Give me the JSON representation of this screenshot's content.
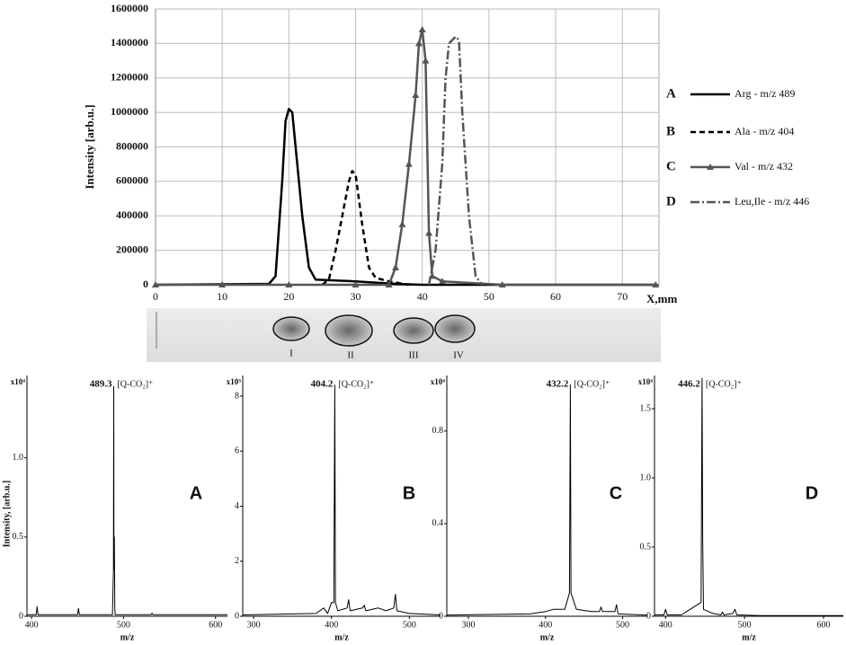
{
  "chart_data": [
    {
      "type": "line",
      "y_label": "Intensity [arb.u.]",
      "x_label": "X,mm",
      "xlim": [
        0,
        75.5
      ],
      "ylim": [
        0,
        1600000
      ],
      "xticks": [
        0,
        10,
        20,
        30,
        40,
        50,
        60,
        70
      ],
      "yticks": [
        0,
        200000,
        400000,
        600000,
        800000,
        1000000,
        1200000,
        1400000,
        1600000
      ],
      "grid": true,
      "series": [
        {
          "name": "Arg - m/z 489",
          "label": "A",
          "color": "#000000",
          "style": "solid",
          "x": [
            0,
            17,
            18,
            19,
            19.5,
            20,
            20.5,
            21,
            22,
            23,
            24,
            30,
            36,
            40,
            75
          ],
          "values": [
            0,
            5000,
            50000,
            600000,
            950000,
            1020000,
            1000000,
            800000,
            400000,
            100000,
            30000,
            20000,
            5000,
            0,
            0
          ]
        },
        {
          "name": "Ala - m/z 404",
          "label": "B",
          "color": "#000000",
          "style": "dashed",
          "x": [
            25,
            26,
            27,
            28,
            29,
            29.5,
            30,
            31,
            32,
            33,
            35,
            38
          ],
          "values": [
            0,
            30000,
            200000,
            400000,
            600000,
            660000,
            640000,
            350000,
            100000,
            40000,
            20000,
            0
          ]
        },
        {
          "name": "Val - m/z 432",
          "label": "C",
          "color": "#555555",
          "style": "solid",
          "marker": "triangle",
          "x": [
            0,
            10,
            20,
            30,
            35,
            36,
            37,
            38,
            39,
            39.5,
            40,
            40.5,
            41,
            41.5,
            43,
            52,
            75
          ],
          "values": [
            0,
            0,
            0,
            0,
            0,
            100000,
            350000,
            700000,
            1100000,
            1400000,
            1480000,
            1300000,
            300000,
            50000,
            20000,
            0,
            0
          ]
        },
        {
          "name": "Leu,Ile - m/z 446",
          "label": "D",
          "color": "#555555",
          "style": "dashdot",
          "x": [
            41,
            42,
            43,
            43.5,
            44,
            45,
            45.5,
            46,
            47,
            48,
            49
          ],
          "values": [
            0,
            200000,
            700000,
            1200000,
            1400000,
            1440000,
            1420000,
            1000000,
            400000,
            50000,
            0
          ]
        }
      ]
    },
    {
      "type": "line",
      "y_label": "Intensity, [arb.u.]",
      "x_label": "m/z",
      "y_multiplier": "x10⁴",
      "panel_label": "A",
      "peak_label": "489.3",
      "ion_label": "[Q-CO₂]⁺",
      "xlim": [
        395,
        613
      ],
      "ylim": [
        0,
        1.52
      ],
      "xticks": [
        400,
        500,
        600
      ],
      "yticks": [
        0,
        0.5,
        {
          "value": 1,
          "label": "1.0"
        }
      ],
      "x": [
        395,
        405,
        406,
        407,
        450,
        451,
        452,
        488,
        489,
        489.3,
        489.6,
        490,
        490.5,
        491,
        530,
        531,
        532,
        613
      ],
      "series": [
        {
          "color": "#000000",
          "values": [
            0.01,
            0.01,
            0.06,
            0.01,
            0.01,
            0.05,
            0.01,
            0.01,
            0.3,
            1.45,
            0.3,
            0.5,
            0.05,
            0.01,
            0.01,
            0.02,
            0.01,
            0.01
          ]
        }
      ]
    },
    {
      "type": "line",
      "x_label": "m/z",
      "y_multiplier": "x10³",
      "panel_label": "B",
      "peak_label": "404.2",
      "ion_label": "[Q-CO₂]⁺",
      "xlim": [
        286,
        540
      ],
      "ylim": [
        0,
        8.75
      ],
      "xticks": [
        300,
        400,
        500
      ],
      "yticks": [
        0,
        2,
        4,
        6,
        8
      ],
      "x": [
        286,
        380,
        390,
        395,
        400,
        403,
        404.2,
        405,
        408,
        420,
        422,
        424,
        440,
        442,
        444,
        460,
        470,
        480,
        482,
        484,
        500,
        540
      ],
      "series": [
        {
          "color": "#000000",
          "values": [
            0.05,
            0.1,
            0.3,
            0.1,
            0.5,
            0.5,
            8.4,
            0.5,
            0.2,
            0.3,
            0.6,
            0.2,
            0.3,
            0.4,
            0.2,
            0.3,
            0.2,
            0.3,
            0.8,
            0.2,
            0.1,
            0.05
          ]
        }
      ]
    },
    {
      "type": "line",
      "x_label": "m/z",
      "y_multiplier": "x10⁴",
      "panel_label": "C",
      "peak_label": "432.2",
      "ion_label": "[Q-CO₂]⁺",
      "xlim": [
        272,
        532
      ],
      "ylim": [
        0,
        1.04
      ],
      "xticks": [
        300,
        400,
        500
      ],
      "yticks": [
        0,
        0.4,
        0.8
      ],
      "x": [
        272,
        380,
        400,
        410,
        425,
        431,
        432.2,
        433,
        440,
        460,
        470,
        472,
        474,
        490,
        492,
        494,
        532
      ],
      "series": [
        {
          "color": "#000000",
          "values": [
            0.005,
            0.01,
            0.02,
            0.03,
            0.03,
            0.1,
            1.0,
            0.1,
            0.03,
            0.02,
            0.02,
            0.04,
            0.02,
            0.02,
            0.05,
            0.01,
            0.005
          ]
        }
      ]
    },
    {
      "type": "line",
      "x_label": "m/z",
      "y_multiplier": "x10⁴",
      "panel_label": "D",
      "peak_label": "446.2",
      "ion_label": "[Q-CO₂]⁺",
      "xlim": [
        386,
        625
      ],
      "ylim": [
        0,
        1.74
      ],
      "xticks": [
        400,
        500,
        600
      ],
      "yticks": [
        0,
        0.5,
        {
          "value": 1,
          "label": "1.0"
        },
        1.5
      ],
      "x": [
        386,
        398,
        400,
        402,
        420,
        445,
        446.2,
        447,
        448,
        460,
        470,
        472,
        474,
        485,
        488,
        490,
        520,
        625
      ],
      "series": [
        {
          "color": "#000000",
          "values": [
            0.01,
            0.01,
            0.05,
            0.01,
            0.01,
            0.1,
            1.72,
            0.55,
            0.05,
            0.02,
            0.01,
            0.03,
            0.01,
            0.02,
            0.05,
            0.01,
            0.005,
            0.005
          ]
        }
      ]
    }
  ],
  "plate": {
    "spots": [
      "I",
      "II",
      "III",
      "IV"
    ]
  }
}
